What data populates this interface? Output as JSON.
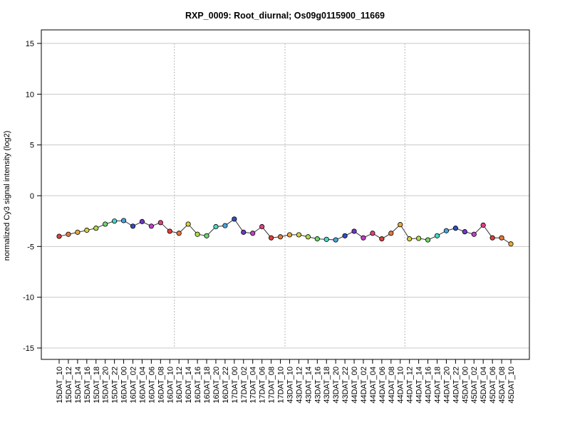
{
  "chart_data": {
    "type": "line",
    "title": "RXP_0009: Root_diurnal; Os09g0115900_11669",
    "xlabel": "",
    "ylabel": "normalized Cy3 signal intensity (log2)",
    "ylim": [
      -15,
      15
    ],
    "yticks": [
      -15,
      -10,
      -5,
      0,
      5,
      10,
      15
    ],
    "grid": true,
    "day_separators_after": [
      "16DAT_10",
      "17DAT_10",
      "44DAT_10"
    ],
    "categories": [
      "15DAT_10",
      "15DAT_12",
      "15DAT_14",
      "15DAT_16",
      "15DAT_18",
      "15DAT_20",
      "15DAT_22",
      "16DAT_00",
      "16DAT_02",
      "16DAT_04",
      "16DAT_06",
      "16DAT_08",
      "16DAT_10",
      "16DAT_12",
      "16DAT_14",
      "16DAT_16",
      "16DAT_18",
      "16DAT_20",
      "16DAT_22",
      "17DAT_00",
      "17DAT_02",
      "17DAT_04",
      "17DAT_06",
      "17DAT_08",
      "17DAT_10",
      "43DAT_10",
      "43DAT_12",
      "43DAT_14",
      "43DAT_16",
      "43DAT_18",
      "43DAT_20",
      "43DAT_22",
      "44DAT_00",
      "44DAT_02",
      "44DAT_04",
      "44DAT_06",
      "44DAT_08",
      "44DAT_10",
      "44DAT_12",
      "44DAT_14",
      "44DAT_16",
      "44DAT_18",
      "44DAT_20",
      "44DAT_22",
      "45DAT_00",
      "45DAT_02",
      "45DAT_04",
      "45DAT_06",
      "45DAT_08",
      "45DAT_10"
    ],
    "values": [
      -4.0,
      -3.8,
      -3.6,
      -3.4,
      -3.2,
      -2.8,
      -2.5,
      -2.45,
      -3.0,
      -2.55,
      -3.0,
      -2.65,
      -3.5,
      -3.7,
      -2.8,
      -3.8,
      -3.95,
      -3.05,
      -2.95,
      -2.3,
      -3.6,
      -3.7,
      -3.05,
      -4.15,
      -4.05,
      -3.85,
      -3.85,
      -4.05,
      -4.25,
      -4.3,
      -4.35,
      -3.95,
      -3.5,
      -4.15,
      -3.7,
      -4.25,
      -3.7,
      -2.85,
      -4.25,
      -4.2,
      -4.35,
      -3.95,
      -3.45,
      -3.2,
      -3.55,
      -3.8,
      -2.9,
      -4.15,
      -4.15,
      -4.75
    ],
    "colors": [
      "#e0403a",
      "#e8763c",
      "#e8a93c",
      "#d8cf40",
      "#b4d84a",
      "#6cd86a",
      "#48d8c8",
      "#48a4e0",
      "#3050c0",
      "#7038c8",
      "#c040c8",
      "#e04080",
      "#e0403a",
      "#e8763c",
      "#d8cf40",
      "#b4d84a",
      "#6cd86a",
      "#48d8c8",
      "#48a4e0",
      "#3050c0",
      "#7038c8",
      "#c040c8",
      "#e04080",
      "#e0403a",
      "#e8763c",
      "#e8a93c",
      "#d8cf40",
      "#b4d84a",
      "#6cd86a",
      "#48d8c8",
      "#48a4e0",
      "#3050c0",
      "#7038c8",
      "#c040c8",
      "#e04080",
      "#e0403a",
      "#e8763c",
      "#e8a93c",
      "#d8cf40",
      "#b4d84a",
      "#6cd86a",
      "#48d8c8",
      "#48a4e0",
      "#3050c0",
      "#7038c8",
      "#c040c8",
      "#e04080",
      "#e0403a",
      "#e8763c",
      "#e8a93c"
    ]
  }
}
